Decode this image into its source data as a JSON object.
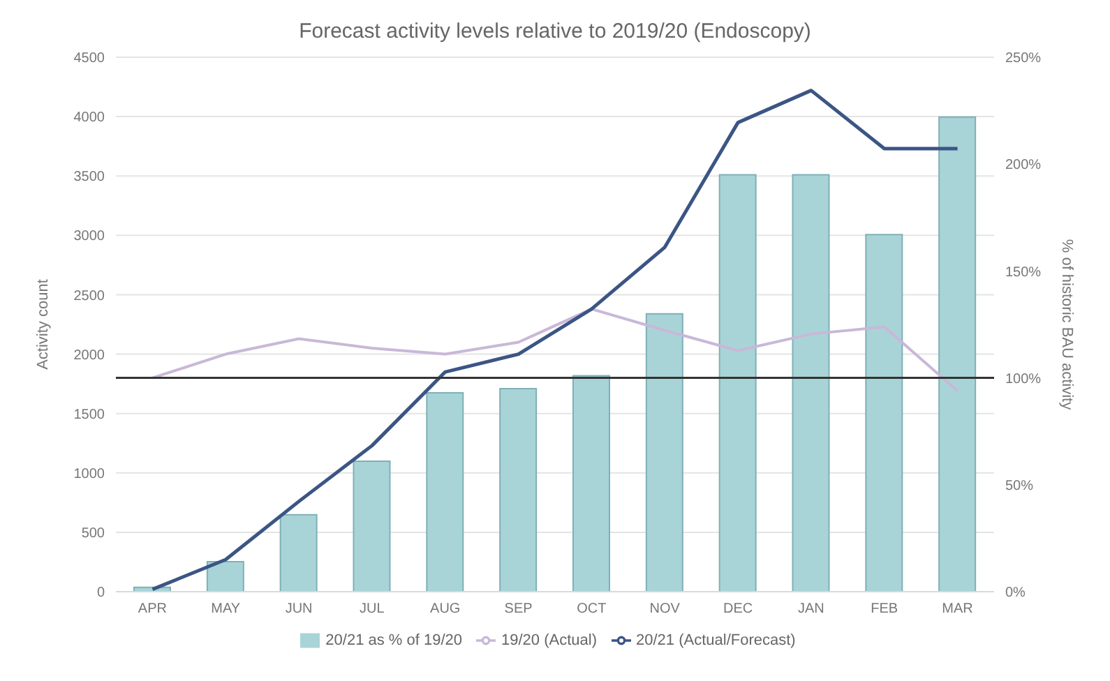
{
  "chart_data": {
    "type": "bar",
    "title": "Forecast activity levels relative to 2019/20 (Endoscopy)",
    "ylabel": "Activity count",
    "y2label": "% of historic BAU activity",
    "categories": [
      "APR",
      "MAY",
      "JUN",
      "JUL",
      "AUG",
      "SEP",
      "OCT",
      "NOV",
      "DEC",
      "JAN",
      "FEB",
      "MAR"
    ],
    "series": [
      {
        "name": "20/21 as % of 19/20",
        "axis": "y2",
        "color": "#a8d4d8",
        "values": [
          2,
          14,
          36,
          61,
          93,
          95,
          101,
          130,
          195,
          195,
          167,
          222
        ]
      },
      {
        "name": "19/20 (Actual)",
        "type": "line",
        "color": "#c9b8d8",
        "values": [
          1800,
          2000,
          2130,
          2050,
          2000,
          2100,
          2380,
          2200,
          2030,
          2170,
          2230,
          1690
        ]
      },
      {
        "name": "20/21 (Actual/Forecast)",
        "type": "line",
        "color": "#3b5584",
        "values": [
          20,
          270,
          760,
          1230,
          1850,
          2000,
          2380,
          2900,
          3950,
          4220,
          3730,
          3730
        ]
      }
    ],
    "ylim": [
      0,
      4500
    ],
    "yticks": [
      0,
      500,
      1000,
      1500,
      2000,
      2500,
      3000,
      3500,
      4000,
      4500
    ],
    "y2lim": [
      0,
      250
    ],
    "y2ticks": [
      {
        "value": 0,
        "label": "0%"
      },
      {
        "value": 50,
        "label": "50%"
      },
      {
        "value": 100,
        "label": "100%"
      },
      {
        "value": 150,
        "label": "150%"
      },
      {
        "value": 200,
        "label": "200%"
      },
      {
        "value": 250,
        "label": "250%"
      }
    ],
    "ref_lines": [
      {
        "axis": "y2",
        "value": 100,
        "color": "#333333"
      }
    ],
    "grid": "y",
    "legend": "bottom",
    "marker": "none"
  }
}
